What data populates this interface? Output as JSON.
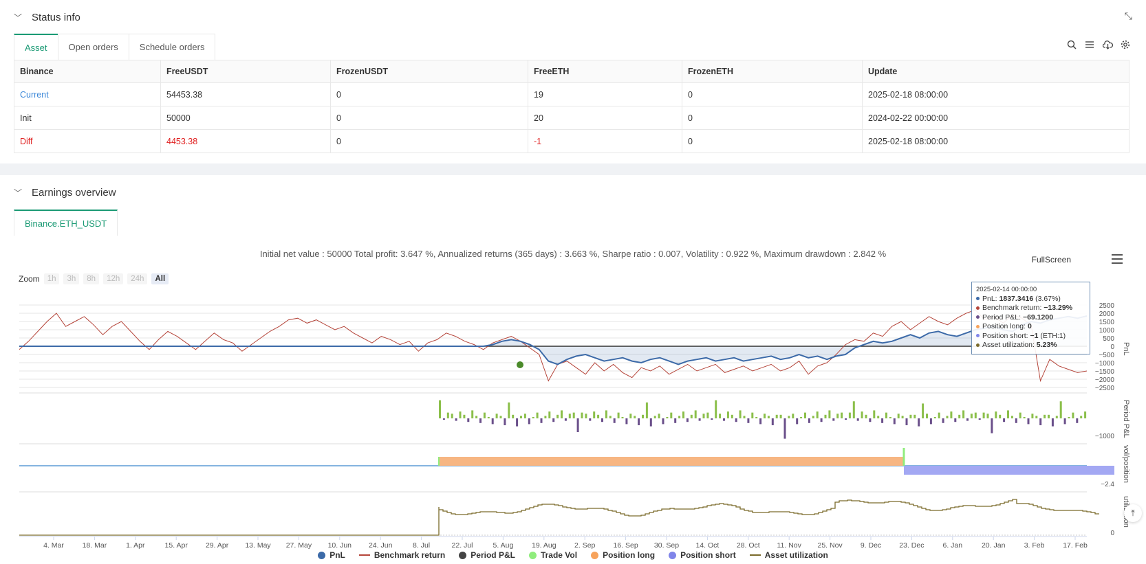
{
  "status": {
    "title": "Status info",
    "tabs": [
      {
        "label": "Asset"
      },
      {
        "label": "Open orders"
      },
      {
        "label": "Schedule orders"
      }
    ],
    "table": {
      "headers": [
        "Binance",
        "FreeUSDT",
        "FrozenUSDT",
        "FreeETH",
        "FrozenETH",
        "Update"
      ],
      "rows": [
        [
          "Current",
          "54453.38",
          "0",
          "19",
          "0",
          "2025-02-18 08:00:00"
        ],
        [
          "Init",
          "50000",
          "0",
          "20",
          "0",
          "2024-02-22 00:00:00"
        ],
        [
          "Diff",
          "4453.38",
          "0",
          "-1",
          "0",
          "2025-02-18 08:00:00"
        ]
      ]
    }
  },
  "earnings": {
    "title": "Earnings overview",
    "tab": "Binance.ETH_USDT",
    "summary": "Initial net value : 50000 Total profit: 3.647 %, Annualized returns (365 days) : 3.663 %, Sharpe ratio : 0.007, Volatility : 0.922 %, Maximum drawdown : 2.842 %",
    "fullscreen": "FullScreen",
    "zoom": {
      "label": "Zoom",
      "buttons": [
        "1h",
        "3h",
        "8h",
        "12h",
        "24h",
        "All"
      ],
      "active": "All"
    },
    "tooltip": {
      "date": "2025-02-14 00:00:00",
      "pnl_label": "PnL: ",
      "pnl_value": "1837.3416",
      "pnl_extra": " (3.67%)",
      "bench_label": "Benchmark return: ",
      "bench_value": "−13.29%",
      "period_label": "Period P&L: ",
      "period_value": "−69.1200",
      "long_label": "Position long: ",
      "long_value": "0",
      "short_label": "Position short: ",
      "short_value": "−1",
      "short_extra": " (ETH:1)",
      "util_label": "Asset utilization: ",
      "util_value": "5.23%"
    },
    "legend": [
      "PnL",
      "Benchmark return",
      "Period P&L",
      "Trade Vol",
      "Position long",
      "Position short",
      "Asset utilization"
    ]
  },
  "colors": {
    "pnl": "#3c6aa8",
    "benchmark": "#b5453a",
    "period": "#444444",
    "tradevol": "#90ed7d",
    "long": "#f7a35c",
    "short": "#8085e9",
    "util": "#7a6a2a",
    "accent": "#1a9a74"
  },
  "chart_data": {
    "type": "line",
    "x_ticks": [
      "4. Mar",
      "18. Mar",
      "1. Apr",
      "15. Apr",
      "29. Apr",
      "13. May",
      "27. May",
      "10. Jun",
      "24. Jun",
      "8. Jul",
      "22. Jul",
      "5. Aug",
      "19. Aug",
      "2. Sep",
      "16. Sep",
      "30. Sep",
      "14. Oct",
      "28. Oct",
      "11. Nov",
      "25. Nov",
      "9. Dec",
      "23. Dec",
      "6. Jan",
      "20. Jan",
      "3. Feb",
      "17. Feb"
    ],
    "panes": [
      {
        "name": "PnL",
        "y_ticks": [
          "2500",
          "2000",
          "1500",
          "1000",
          "500",
          "0",
          "−500",
          "−1000",
          "−1500",
          "−2000",
          "−2500"
        ],
        "ylim": [
          -2500,
          2500
        ]
      },
      {
        "name": "Period P&L",
        "y_ticks": [
          "−1000"
        ]
      },
      {
        "name": "vol/position",
        "y_ticks": [
          "−2.4"
        ]
      },
      {
        "name": "utilization",
        "y_ticks": [
          "0"
        ]
      }
    ],
    "pnl": [
      0,
      0,
      0,
      0,
      0,
      0,
      0,
      0,
      0,
      0,
      0,
      0,
      0,
      0,
      0,
      0,
      0,
      0,
      0,
      0,
      0,
      0,
      0,
      0,
      0,
      0,
      0,
      0,
      0,
      0,
      0,
      0,
      0,
      0,
      0,
      0,
      0,
      0,
      0,
      0,
      0,
      0,
      0,
      0,
      0,
      0,
      0,
      0,
      0,
      0,
      0,
      100,
      300,
      400,
      300,
      100,
      -200,
      -900,
      -1100,
      -800,
      -600,
      -500,
      -700,
      -900,
      -800,
      -700,
      -900,
      -1000,
      -800,
      -700,
      -900,
      -1100,
      -900,
      -800,
      -700,
      -900,
      -800,
      -700,
      -900,
      -800,
      -700,
      -600,
      -800,
      -700,
      -500,
      -700,
      -600,
      -800,
      -600,
      -500,
      -100,
      100,
      300,
      200,
      300,
      500,
      700,
      500,
      800,
      900,
      700,
      600,
      800,
      1000,
      1100,
      1200,
      1000,
      900,
      1300,
      1500,
      1400,
      1600,
      1700,
      1800,
      1700,
      1837
    ],
    "benchmark": [
      -200,
      300,
      900,
      1500,
      2000,
      1200,
      1500,
      1800,
      1300,
      700,
      1200,
      1500,
      900,
      300,
      -200,
      400,
      900,
      600,
      200,
      -200,
      300,
      800,
      400,
      200,
      -300,
      100,
      500,
      900,
      1200,
      1600,
      1700,
      1400,
      1600,
      1300,
      1000,
      1200,
      800,
      500,
      200,
      600,
      400,
      100,
      300,
      -300,
      200,
      400,
      800,
      600,
      300,
      100,
      -200,
      200,
      400,
      600,
      300,
      -100,
      -500,
      -2100,
      -1100,
      -900,
      -1300,
      -1700,
      -1000,
      -1500,
      -1100,
      -1600,
      -1900,
      -1300,
      -1500,
      -1200,
      -1700,
      -1400,
      -1100,
      -1500,
      -1300,
      -1100,
      -1600,
      -1400,
      -1200,
      -1500,
      -1300,
      -1100,
      -1500,
      -1300,
      -900,
      -1700,
      -1200,
      -1000,
      -500,
      100,
      400,
      300,
      800,
      600,
      1200,
      1500,
      1000,
      1400,
      1800,
      1500,
      1300,
      1700,
      2000,
      2200,
      1600,
      1800,
      1400,
      1900,
      1700,
      1300,
      -2100,
      -800,
      -1200,
      -1400,
      -1600,
      -1500
    ]
  }
}
